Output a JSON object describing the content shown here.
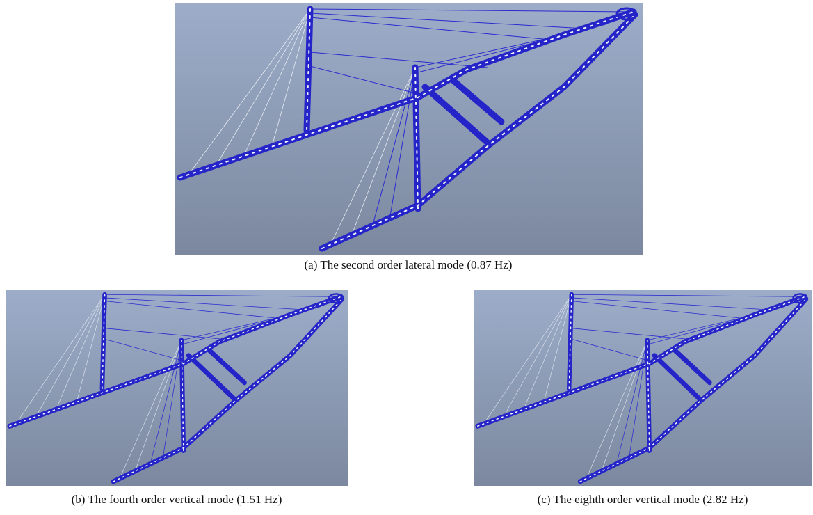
{
  "figures": [
    {
      "caption": "(a) The second order lateral mode (0.87 Hz)"
    },
    {
      "caption": "(b) The fourth order vertical mode (1.51 Hz)"
    },
    {
      "caption": "(c) The eighth order vertical mode (2.82 Hz)"
    }
  ]
}
